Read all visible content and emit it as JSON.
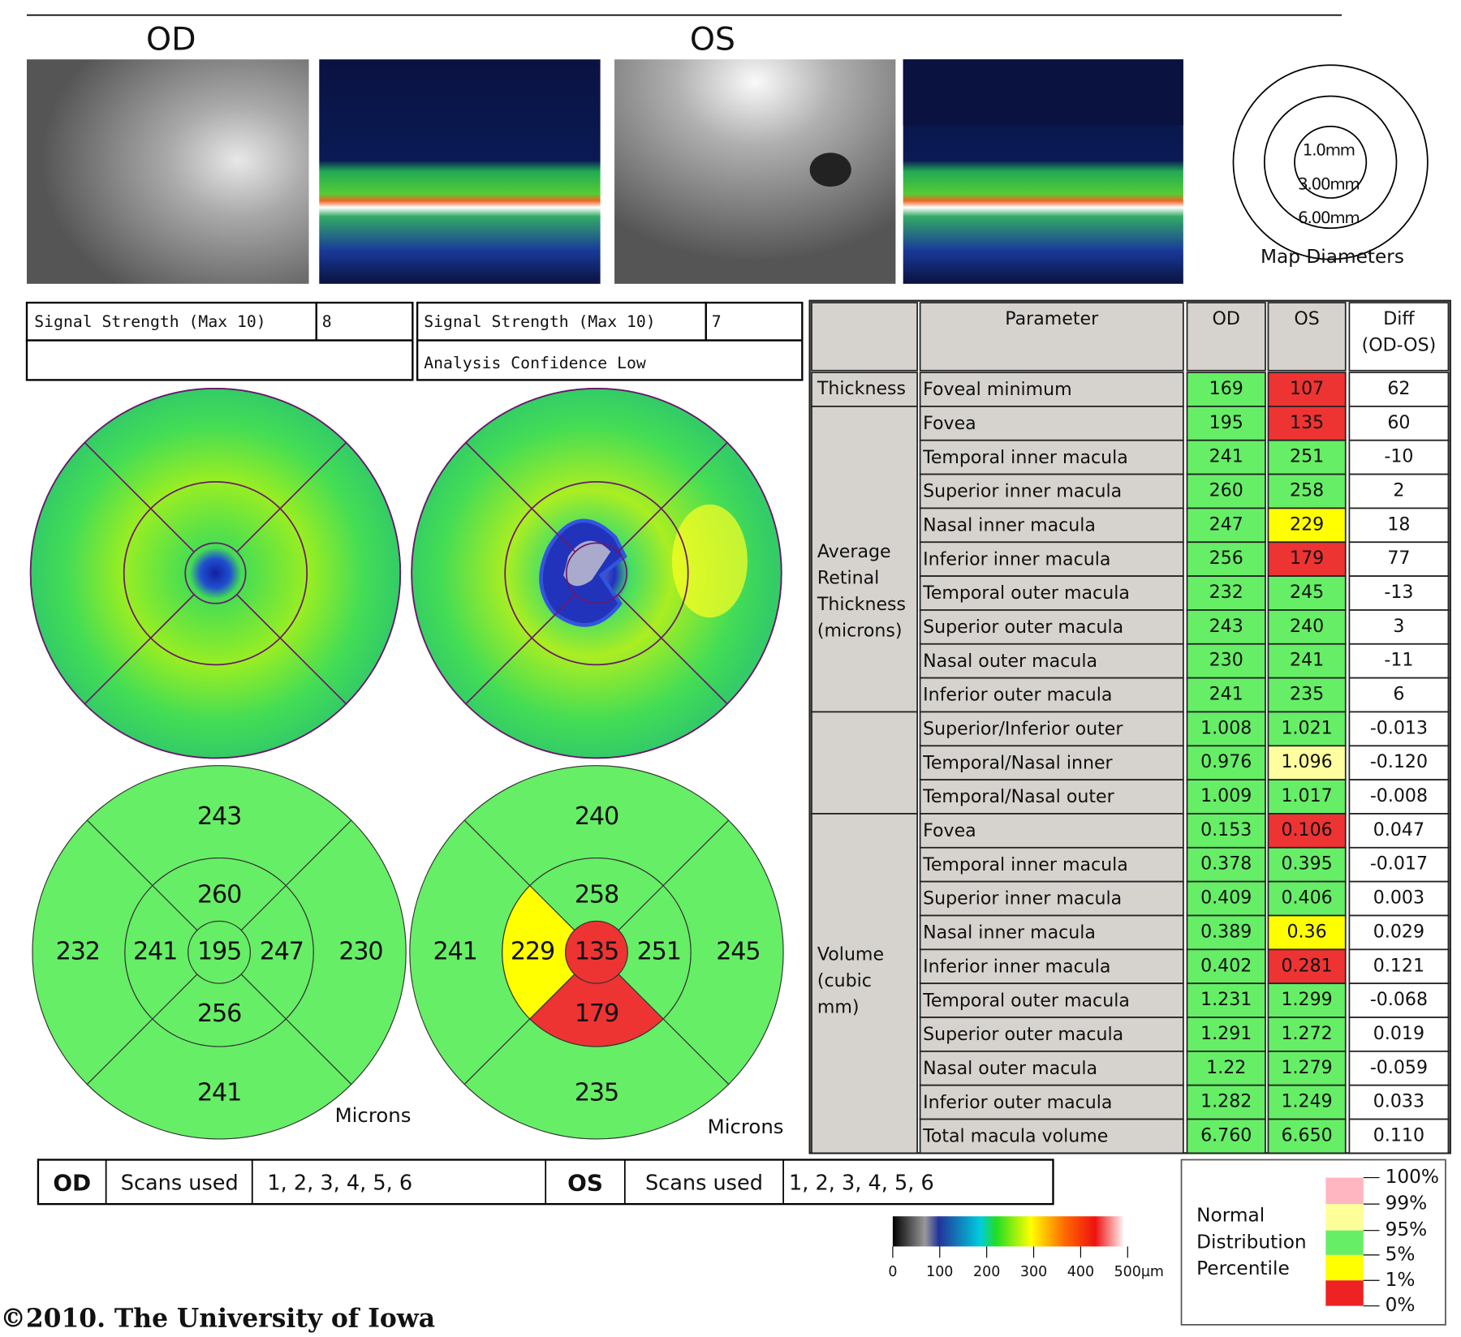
{
  "header": {
    "od_label": "OD",
    "os_label": "OS"
  },
  "map_diameters": {
    "title": "Map Diameters",
    "rings": [
      "1.0mm",
      "3.00mm",
      "6.00mm"
    ]
  },
  "signal": {
    "od": {
      "label": "Signal Strength (Max 10)",
      "value": "8"
    },
    "os": {
      "label": "Signal Strength (Max 10)",
      "value": "7",
      "note": "Analysis Confidence Low"
    }
  },
  "table": {
    "headers": {
      "parameter": "Parameter",
      "od": "OD",
      "os": "OS",
      "diff": [
        "Diff",
        "(OD-OS)"
      ]
    },
    "groups": [
      {
        "lines": [
          "Thickness"
        ],
        "rows": [
          {
            "parameter": "Foveal minimum",
            "od": "169",
            "os": "107",
            "diff": "62",
            "od_color": "#66ee66",
            "os_color": "#ee3333"
          }
        ]
      },
      {
        "lines": [
          "Average",
          "Retinal",
          "Thickness",
          "(microns)"
        ],
        "rows": [
          {
            "parameter": "Fovea",
            "od": "195",
            "os": "135",
            "diff": "60",
            "od_color": "#66ee66",
            "os_color": "#ee3333"
          },
          {
            "parameter": "Temporal inner macula",
            "od": "241",
            "os": "251",
            "diff": "-10",
            "od_color": "#66ee66",
            "os_color": "#66ee66"
          },
          {
            "parameter": "Superior inner macula",
            "od": "260",
            "os": "258",
            "diff": "2",
            "od_color": "#66ee66",
            "os_color": "#66ee66"
          },
          {
            "parameter": "Nasal inner macula",
            "od": "247",
            "os": "229",
            "diff": "18",
            "od_color": "#66ee66",
            "os_color": "#ffff00"
          },
          {
            "parameter": "Inferior inner macula",
            "od": "256",
            "os": "179",
            "diff": "77",
            "od_color": "#66ee66",
            "os_color": "#ee3333"
          },
          {
            "parameter": "Temporal outer macula",
            "od": "232",
            "os": "245",
            "diff": "-13",
            "od_color": "#66ee66",
            "os_color": "#66ee66"
          },
          {
            "parameter": "Superior outer macula",
            "od": "243",
            "os": "240",
            "diff": "3",
            "od_color": "#66ee66",
            "os_color": "#66ee66"
          },
          {
            "parameter": "Nasal outer macula",
            "od": "230",
            "os": "241",
            "diff": "-11",
            "od_color": "#66ee66",
            "os_color": "#66ee66"
          },
          {
            "parameter": "Inferior outer macula",
            "od": "241",
            "os": "235",
            "diff": "6",
            "od_color": "#66ee66",
            "os_color": "#66ee66"
          }
        ]
      },
      {
        "lines": [],
        "rows": [
          {
            "parameter": "Superior/Inferior outer",
            "od": "1.008",
            "os": "1.021",
            "diff": "-0.013",
            "od_color": "#66ee66",
            "os_color": "#66ee66"
          },
          {
            "parameter": "Temporal/Nasal inner",
            "od": "0.976",
            "os": "1.096",
            "diff": "-0.120",
            "od_color": "#66ee66",
            "os_color": "#ffffa0"
          },
          {
            "parameter": "Temporal/Nasal outer",
            "od": "1.009",
            "os": "1.017",
            "diff": "-0.008",
            "od_color": "#66ee66",
            "os_color": "#66ee66"
          }
        ]
      },
      {
        "lines": [
          "Volume",
          "(cubic",
          "mm)"
        ],
        "rows": [
          {
            "parameter": "Fovea",
            "od": "0.153",
            "os": "0.106",
            "diff": "0.047",
            "od_color": "#66ee66",
            "os_color": "#ee3333"
          },
          {
            "parameter": "Temporal inner macula",
            "od": "0.378",
            "os": "0.395",
            "diff": "-0.017",
            "od_color": "#66ee66",
            "os_color": "#66ee66"
          },
          {
            "parameter": "Superior inner macula",
            "od": "0.409",
            "os": "0.406",
            "diff": "0.003",
            "od_color": "#66ee66",
            "os_color": "#66ee66"
          },
          {
            "parameter": "Nasal inner macula",
            "od": "0.389",
            "os": "0.36",
            "diff": "0.029",
            "od_color": "#66ee66",
            "os_color": "#ffff00"
          },
          {
            "parameter": "Inferior inner macula",
            "od": "0.402",
            "os": "0.281",
            "diff": "0.121",
            "od_color": "#66ee66",
            "os_color": "#ee3333"
          },
          {
            "parameter": "Temporal outer macula",
            "od": "1.231",
            "os": "1.299",
            "diff": "-0.068",
            "od_color": "#66ee66",
            "os_color": "#66ee66"
          },
          {
            "parameter": "Superior outer macula",
            "od": "1.291",
            "os": "1.272",
            "diff": "0.019",
            "od_color": "#66ee66",
            "os_color": "#66ee66"
          },
          {
            "parameter": "Nasal outer macula",
            "od": "1.22",
            "os": "1.279",
            "diff": "-0.059",
            "od_color": "#66ee66",
            "os_color": "#66ee66"
          },
          {
            "parameter": "Inferior outer macula",
            "od": "1.282",
            "os": "1.249",
            "diff": "0.033",
            "od_color": "#66ee66",
            "os_color": "#66ee66"
          },
          {
            "parameter": "Total macula volume",
            "od": "6.760",
            "os": "6.650",
            "diff": "0.110",
            "od_color": "#66ee66",
            "os_color": "#66ee66"
          }
        ]
      }
    ]
  },
  "sector_maps": {
    "od": {
      "unit": "Microns",
      "sectors": {
        "top_outer": {
          "value": "243",
          "color": "#66ee66"
        },
        "top_inner": {
          "value": "260",
          "color": "#66ee66"
        },
        "left_outer": {
          "value": "232",
          "color": "#66ee66"
        },
        "left_inner": {
          "value": "241",
          "color": "#66ee66"
        },
        "center": {
          "value": "195",
          "color": "#66ee66"
        },
        "right_inner": {
          "value": "247",
          "color": "#66ee66"
        },
        "right_outer": {
          "value": "230",
          "color": "#66ee66"
        },
        "bottom_inner": {
          "value": "256",
          "color": "#66ee66"
        },
        "bottom_outer": {
          "value": "241",
          "color": "#66ee66"
        }
      }
    },
    "os": {
      "unit": "Microns",
      "sectors": {
        "top_outer": {
          "value": "240",
          "color": "#66ee66"
        },
        "top_inner": {
          "value": "258",
          "color": "#66ee66"
        },
        "left_outer": {
          "value": "241",
          "color": "#66ee66"
        },
        "left_inner": {
          "value": "229",
          "color": "#ffff00"
        },
        "center": {
          "value": "135",
          "color": "#ee3333"
        },
        "right_inner": {
          "value": "251",
          "color": "#66ee66"
        },
        "right_outer": {
          "value": "245",
          "color": "#66ee66"
        },
        "bottom_inner": {
          "value": "179",
          "color": "#ee3333"
        },
        "bottom_outer": {
          "value": "235",
          "color": "#66ee66"
        }
      }
    }
  },
  "scans": {
    "od": {
      "eye": "OD",
      "label": "Scans used",
      "scans": "1, 2, 3, 4, 5, 6"
    },
    "os": {
      "eye": "OS",
      "label": "Scans used",
      "scans": "1, 2, 3, 4, 5, 6"
    }
  },
  "colorbar": {
    "lim": [
      0,
      500
    ],
    "ticks": [
      0,
      100,
      200,
      300,
      400,
      {
        "value": 500,
        "label": "500µm"
      }
    ]
  },
  "percentile": {
    "title": [
      "Normal",
      "Distribution",
      "Percentile"
    ],
    "labels": [
      "100%",
      "99%",
      "95%",
      "5%",
      "1%",
      "0%"
    ],
    "colors": [
      "#ffb6c1",
      "#ffff99",
      "#66ee66",
      "#ffff00",
      "#ee2222"
    ]
  },
  "copyright": "©2010. The University of Iowa"
}
